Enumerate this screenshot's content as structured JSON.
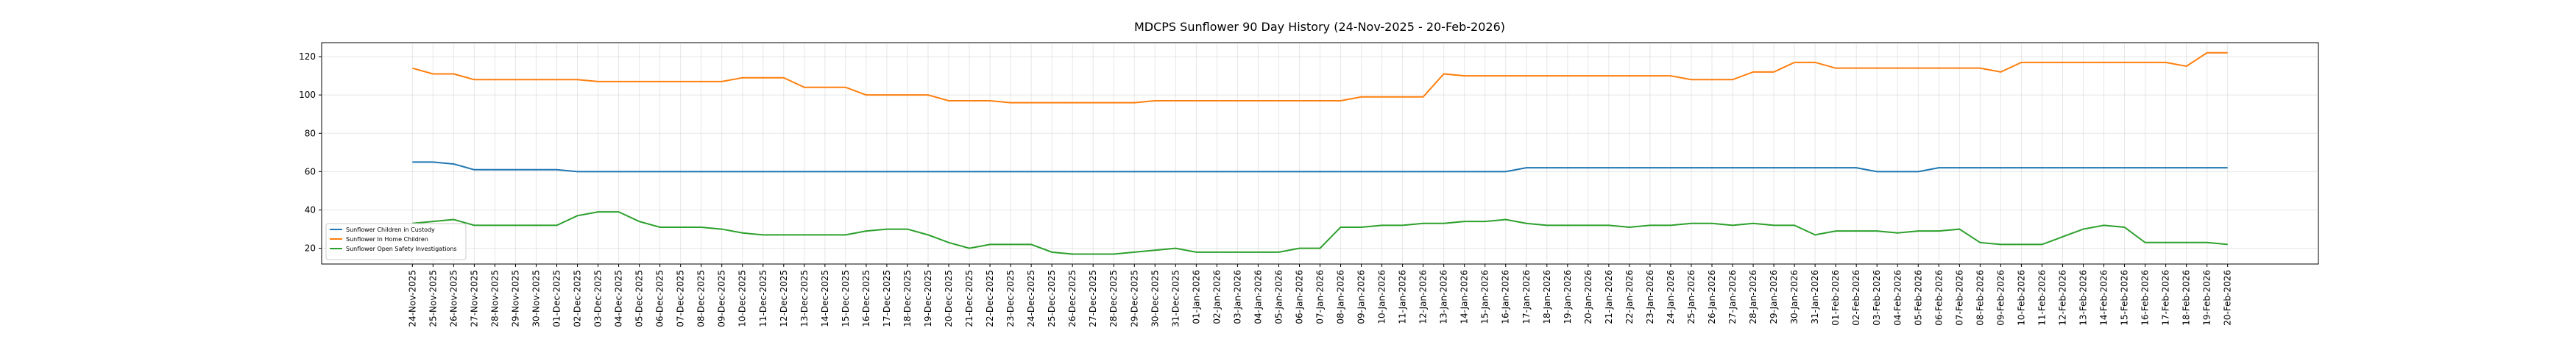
{
  "chart_data": {
    "type": "line",
    "title": "MDCPS Sunflower 90 Day History (24-Nov-2025 - 20-Feb-2026)",
    "categories": [
      "24-Nov-2025",
      "25-Nov-2025",
      "26-Nov-2025",
      "27-Nov-2025",
      "28-Nov-2025",
      "29-Nov-2025",
      "30-Nov-2025",
      "01-Dec-2025",
      "02-Dec-2025",
      "03-Dec-2025",
      "04-Dec-2025",
      "05-Dec-2025",
      "06-Dec-2025",
      "07-Dec-2025",
      "08-Dec-2025",
      "09-Dec-2025",
      "10-Dec-2025",
      "11-Dec-2025",
      "12-Dec-2025",
      "13-Dec-2025",
      "14-Dec-2025",
      "15-Dec-2025",
      "16-Dec-2025",
      "17-Dec-2025",
      "18-Dec-2025",
      "19-Dec-2025",
      "20-Dec-2025",
      "21-Dec-2025",
      "22-Dec-2025",
      "23-Dec-2025",
      "24-Dec-2025",
      "25-Dec-2025",
      "26-Dec-2025",
      "27-Dec-2025",
      "28-Dec-2025",
      "29-Dec-2025",
      "30-Dec-2025",
      "31-Dec-2025",
      "01-Jan-2026",
      "02-Jan-2026",
      "03-Jan-2026",
      "04-Jan-2026",
      "05-Jan-2026",
      "06-Jan-2026",
      "07-Jan-2026",
      "08-Jan-2026",
      "09-Jan-2026",
      "10-Jan-2026",
      "11-Jan-2026",
      "12-Jan-2026",
      "13-Jan-2026",
      "14-Jan-2026",
      "15-Jan-2026",
      "16-Jan-2026",
      "17-Jan-2026",
      "18-Jan-2026",
      "19-Jan-2026",
      "20-Jan-2026",
      "21-Jan-2026",
      "22-Jan-2026",
      "23-Jan-2026",
      "24-Jan-2026",
      "25-Jan-2026",
      "26-Jan-2026",
      "27-Jan-2026",
      "28-Jan-2026",
      "29-Jan-2026",
      "30-Jan-2026",
      "31-Jan-2026",
      "01-Feb-2026",
      "02-Feb-2026",
      "03-Feb-2026",
      "04-Feb-2026",
      "05-Feb-2026",
      "06-Feb-2026",
      "07-Feb-2026",
      "08-Feb-2026",
      "09-Feb-2026",
      "10-Feb-2026",
      "11-Feb-2026",
      "12-Feb-2026",
      "13-Feb-2026",
      "14-Feb-2026",
      "15-Feb-2026",
      "16-Feb-2026",
      "17-Feb-2026",
      "18-Feb-2026",
      "19-Feb-2026",
      "20-Feb-2026"
    ],
    "series": [
      {
        "name": "Sunflower Children in Custody",
        "color": "#1f77b4",
        "values": [
          65,
          65,
          64,
          61,
          61,
          61,
          61,
          61,
          60,
          60,
          60,
          60,
          60,
          60,
          60,
          60,
          60,
          60,
          60,
          60,
          60,
          60,
          60,
          60,
          60,
          60,
          60,
          60,
          60,
          60,
          60,
          60,
          60,
          60,
          60,
          60,
          60,
          60,
          60,
          60,
          60,
          60,
          60,
          60,
          60,
          60,
          60,
          60,
          60,
          60,
          60,
          60,
          60,
          60,
          62,
          62,
          62,
          62,
          62,
          62,
          62,
          62,
          62,
          62,
          62,
          62,
          62,
          62,
          62,
          62,
          62,
          60,
          60,
          60,
          62,
          62,
          62,
          62,
          62,
          62,
          62,
          62,
          62,
          62,
          62,
          62,
          62,
          62,
          62
        ]
      },
      {
        "name": "Sunflower In Home Children",
        "color": "#ff7f0e",
        "values": [
          114,
          111,
          111,
          108,
          108,
          108,
          108,
          108,
          108,
          107,
          107,
          107,
          107,
          107,
          107,
          107,
          109,
          109,
          109,
          104,
          104,
          104,
          100,
          100,
          100,
          100,
          97,
          97,
          97,
          96,
          96,
          96,
          96,
          96,
          96,
          96,
          97,
          97,
          97,
          97,
          97,
          97,
          97,
          97,
          97,
          97,
          99,
          99,
          99,
          99,
          111,
          110,
          110,
          110,
          110,
          110,
          110,
          110,
          110,
          110,
          110,
          110,
          108,
          108,
          108,
          112,
          112,
          117,
          117,
          114,
          114,
          114,
          114,
          114,
          114,
          114,
          114,
          112,
          117,
          117,
          117,
          117,
          117,
          117,
          117,
          117,
          115,
          122,
          122
        ]
      },
      {
        "name": "Sunflower Open Safety Investigations",
        "color": "#2ca02c",
        "values": [
          33,
          34,
          35,
          32,
          32,
          32,
          32,
          32,
          37,
          39,
          39,
          34,
          31,
          31,
          31,
          30,
          28,
          27,
          27,
          27,
          27,
          27,
          29,
          30,
          30,
          27,
          23,
          20,
          22,
          22,
          22,
          18,
          17,
          17,
          17,
          18,
          19,
          20,
          18,
          18,
          18,
          18,
          18,
          20,
          20,
          31,
          31,
          32,
          32,
          33,
          33,
          34,
          34,
          35,
          33,
          32,
          32,
          32,
          32,
          31,
          32,
          32,
          33,
          33,
          32,
          33,
          32,
          32,
          27,
          29,
          29,
          29,
          28,
          29,
          29,
          30,
          23,
          22,
          22,
          22,
          26,
          30,
          32,
          31,
          23,
          23,
          23,
          23,
          22
        ]
      }
    ],
    "ylim": [
      11.8,
      127.3
    ],
    "yticks": [
      20,
      40,
      60,
      80,
      100,
      120
    ],
    "grid": true,
    "legend": "lower left"
  }
}
